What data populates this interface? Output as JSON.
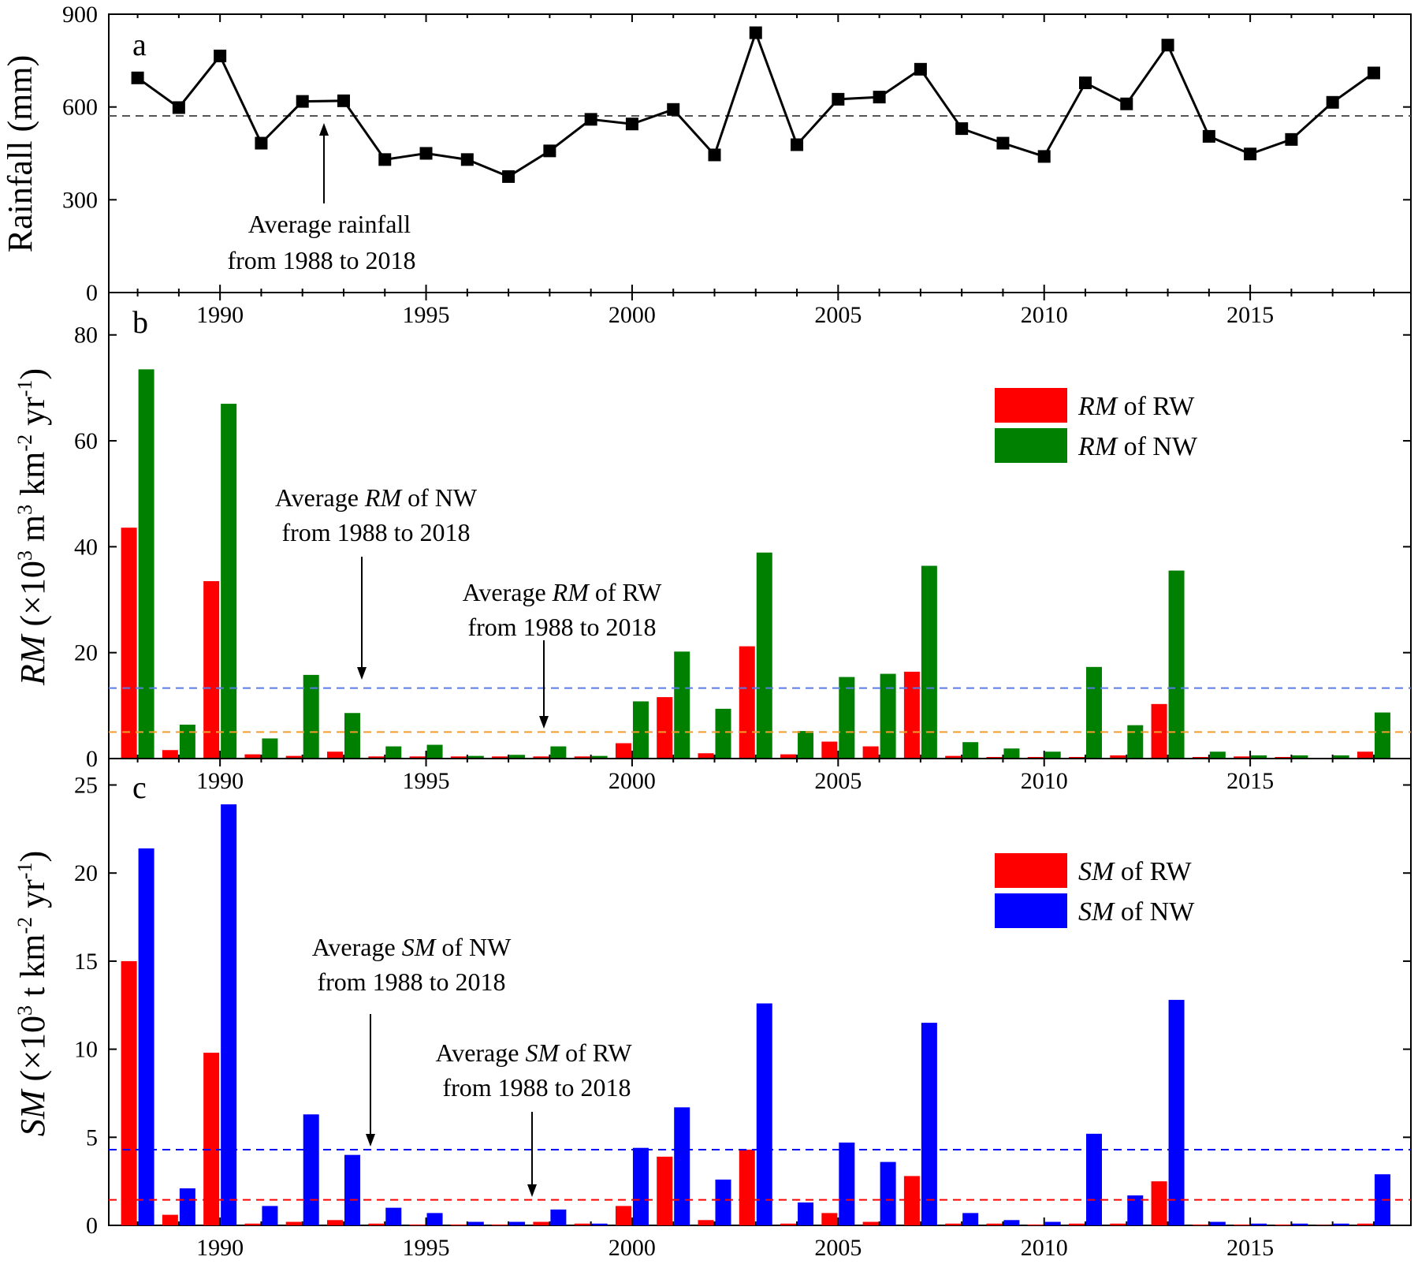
{
  "chart_data": [
    {
      "type": "line",
      "panel_label": "a",
      "ylabel": "Rainfall (mm)",
      "ylim": [
        0,
        900
      ],
      "yticks": [
        "0",
        "300",
        "600",
        "900"
      ],
      "xlim": [
        1987.3,
        2018.9
      ],
      "xticks": [
        "1990",
        "1995",
        "2000",
        "2005",
        "2010",
        "2015"
      ],
      "x": [
        1988,
        1989,
        1990,
        1991,
        1992,
        1993,
        1994,
        1995,
        1996,
        1997,
        1998,
        1999,
        2000,
        2001,
        2002,
        2003,
        2004,
        2005,
        2006,
        2007,
        2008,
        2009,
        2010,
        2011,
        2012,
        2013,
        2014,
        2015,
        2016,
        2017,
        2018
      ],
      "values": [
        694,
        598,
        765,
        483,
        618,
        620,
        430,
        450,
        430,
        375,
        458,
        560,
        545,
        592,
        445,
        840,
        478,
        625,
        632,
        722,
        530,
        483,
        440,
        678,
        610,
        800,
        505,
        448,
        495,
        615,
        710
      ],
      "average": 571,
      "average_color": "#555555",
      "line_color": "#000000",
      "annotation": {
        "line1": "Average rainfall",
        "line2": "from 1988 to 2018"
      }
    },
    {
      "type": "bar",
      "panel_label": "b",
      "ylabel": {
        "var": "RM",
        "pre": " (×10",
        "sup1": "3",
        "mid1": " m",
        "sup2": "3",
        "mid2": " km",
        "sup3": "-2",
        "mid3": " yr",
        "sup4": "-1",
        "post": ")"
      },
      "ylim": [
        0,
        88
      ],
      "yticks": [
        "0",
        "20",
        "40",
        "60",
        "80"
      ],
      "xticks": [
        "1990",
        "1995",
        "2000",
        "2005",
        "2010",
        "2015"
      ],
      "categories": [
        1988,
        1989,
        1990,
        1991,
        1992,
        1993,
        1994,
        1995,
        1996,
        1997,
        1998,
        1999,
        2000,
        2001,
        2002,
        2003,
        2004,
        2005,
        2006,
        2007,
        2008,
        2009,
        2010,
        2011,
        2012,
        2013,
        2014,
        2015,
        2016,
        2017,
        2018
      ],
      "series": [
        {
          "name": "RM of RW",
          "var": "RM",
          "suffix": " of RW",
          "color": "#ff0000",
          "values": [
            43.6,
            1.6,
            33.5,
            0.8,
            0.5,
            1.3,
            0.4,
            0.4,
            0.4,
            0.4,
            0.4,
            0.4,
            2.9,
            11.6,
            1.0,
            21.2,
            0.8,
            3.2,
            2.3,
            16.4,
            0.5,
            0.3,
            0.3,
            0.3,
            0.6,
            10.3,
            0.3,
            0.4,
            0.3,
            0.1,
            1.3
          ]
        },
        {
          "name": "RM of NW",
          "var": "RM",
          "suffix": " of NW",
          "color": "#008000",
          "values": [
            73.5,
            6.4,
            67.0,
            3.8,
            15.8,
            8.6,
            2.3,
            2.6,
            0.5,
            0.7,
            2.3,
            0.5,
            10.8,
            20.2,
            9.4,
            38.9,
            5.2,
            15.4,
            16.0,
            36.4,
            3.1,
            1.9,
            1.3,
            17.3,
            6.3,
            35.5,
            1.3,
            0.6,
            0.6,
            0.6,
            8.7
          ]
        }
      ],
      "averages": [
        {
          "name": "Average RM of NW",
          "value": 13.3,
          "color": "#5b7be8"
        },
        {
          "name": "Average RM of RW",
          "value": 5.0,
          "color": "#f39c2c"
        }
      ],
      "annotations": [
        {
          "pre": "Average ",
          "var": "RM",
          "post": " of NW",
          "line2": "from 1988 to 2018"
        },
        {
          "pre": "Average ",
          "var": "RM",
          "post": " of RW",
          "line2": "from 1988 to 2018"
        }
      ]
    },
    {
      "type": "bar",
      "panel_label": "c",
      "ylabel": {
        "var": "SM",
        "pre": " (×10",
        "sup1": "3",
        "mid1": " t km",
        "sup2": "-2",
        "mid2": " yr",
        "sup3": "-1",
        "post": ")"
      },
      "ylim": [
        0,
        26.5
      ],
      "yticks": [
        "0",
        "5",
        "10",
        "15",
        "20",
        "25"
      ],
      "xticks": [
        "1990",
        "1995",
        "2000",
        "2005",
        "2010",
        "2015"
      ],
      "categories": [
        1988,
        1989,
        1990,
        1991,
        1992,
        1993,
        1994,
        1995,
        1996,
        1997,
        1998,
        1999,
        2000,
        2001,
        2002,
        2003,
        2004,
        2005,
        2006,
        2007,
        2008,
        2009,
        2010,
        2011,
        2012,
        2013,
        2014,
        2015,
        2016,
        2017,
        2018
      ],
      "series": [
        {
          "name": "SM of RW",
          "var": "SM",
          "suffix": " of RW",
          "color": "#ff0000",
          "values": [
            15.0,
            0.6,
            9.8,
            0.1,
            0.2,
            0.3,
            0.1,
            0.05,
            0.05,
            0.05,
            0.2,
            0.1,
            1.1,
            3.9,
            0.3,
            4.3,
            0.1,
            0.7,
            0.2,
            2.8,
            0.1,
            0.1,
            0.05,
            0.1,
            0.1,
            2.5,
            0.05,
            0.05,
            0.05,
            0.02,
            0.1
          ]
        },
        {
          "name": "SM of NW",
          "var": "SM",
          "suffix": " of NW",
          "color": "#0000ff",
          "values": [
            21.4,
            2.1,
            23.9,
            1.1,
            6.3,
            4.0,
            1.0,
            0.7,
            0.2,
            0.2,
            0.9,
            0.1,
            4.4,
            6.7,
            2.6,
            12.6,
            1.3,
            4.7,
            3.6,
            11.5,
            0.7,
            0.3,
            0.2,
            5.2,
            1.7,
            12.8,
            0.2,
            0.1,
            0.1,
            0.1,
            2.9
          ]
        }
      ],
      "averages": [
        {
          "name": "Average SM of NW",
          "value": 4.3,
          "color": "#0000ff"
        },
        {
          "name": "Average SM of RW",
          "value": 1.45,
          "color": "#ff0000"
        }
      ],
      "annotations": [
        {
          "pre": "Average ",
          "var": "SM",
          "post": " of NW",
          "line2": "from 1988 to 2018"
        },
        {
          "pre": "Average ",
          "var": "SM",
          "post": " of RW",
          "line2": "from 1988 to 2018"
        }
      ]
    }
  ]
}
